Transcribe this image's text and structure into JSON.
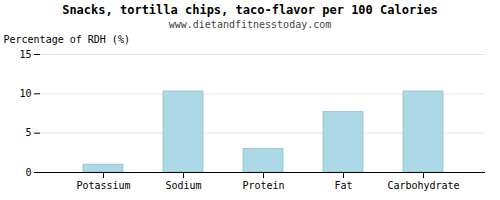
{
  "chart_data": {
    "type": "bar",
    "title": "Snacks, tortilla chips, taco-flavor per 100 Calories",
    "subtitle": "www.dietandfitnesstoday.com",
    "ylabel": "Percentage of RDH (%)",
    "categories": [
      "Potassium",
      "Sodium",
      "Protein",
      "Fat",
      "Carbohydrate"
    ],
    "values": [
      1.0,
      10.3,
      3.0,
      7.7,
      10.3
    ],
    "color": "#add8e6",
    "ylim": [
      0,
      15
    ],
    "yticks": [
      0,
      5,
      10,
      15
    ],
    "grid": true
  }
}
